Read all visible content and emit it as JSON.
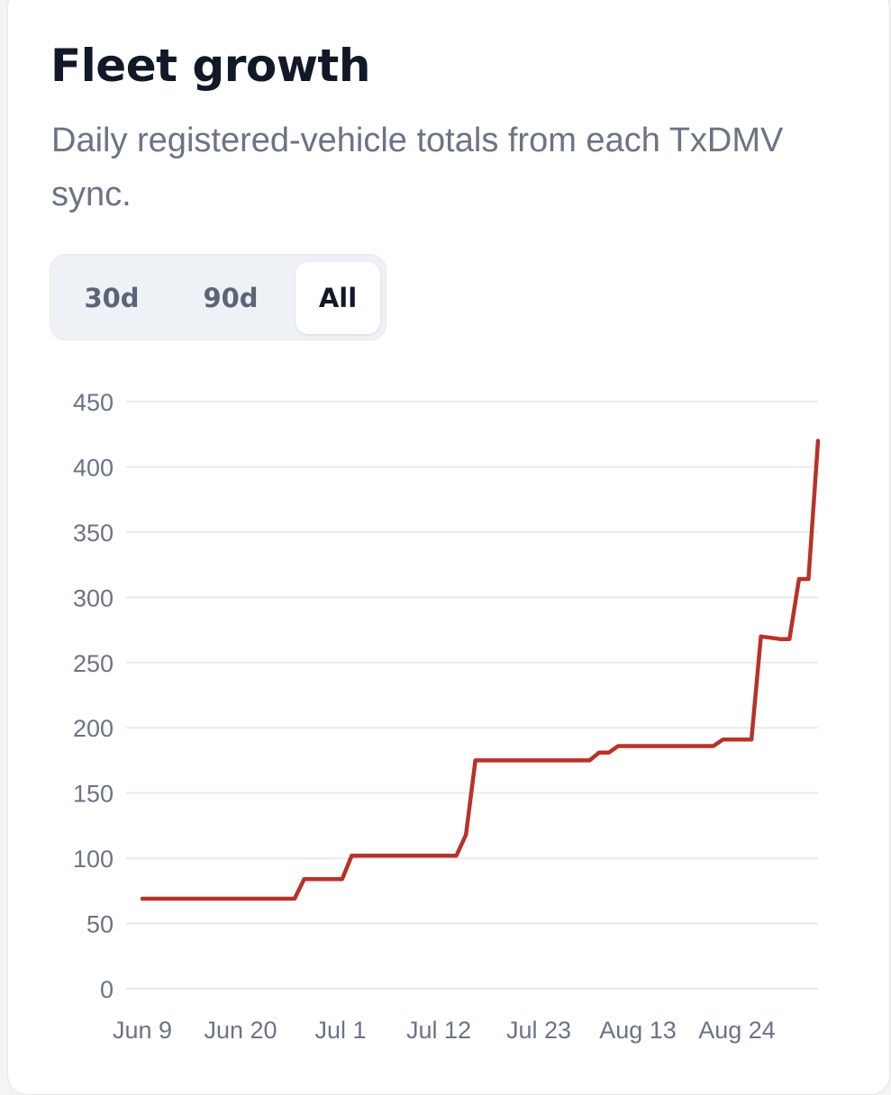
{
  "header": {
    "title": "Fleet growth",
    "subtitle": "Daily registered-vehicle totals from each TxDMV sync."
  },
  "range_selector": {
    "options": [
      "30d",
      "90d",
      "All"
    ],
    "selected": "All"
  },
  "colors": {
    "line": "#b83228",
    "grid": "#e8eaf0",
    "tick_text": "#6b7385",
    "title": "#111827"
  },
  "chart_data": {
    "type": "line",
    "title": "",
    "xlabel": "",
    "ylabel": "",
    "ylim": [
      0,
      450
    ],
    "yticks": [
      0,
      50,
      100,
      150,
      200,
      250,
      300,
      350,
      400,
      450
    ],
    "xtick_labels": [
      "Jun 9",
      "Jun 20",
      "Jul 1",
      "Jul 12",
      "Jul 23",
      "Aug 13",
      "Aug 24"
    ],
    "grid": true,
    "legend": "none",
    "series": [
      {
        "values": [
          69,
          69,
          69,
          69,
          69,
          69,
          69,
          69,
          69,
          69,
          69,
          69,
          69,
          69,
          69,
          69,
          69,
          84,
          84,
          84,
          84,
          84,
          102,
          102,
          102,
          102,
          102,
          102,
          102,
          102,
          102,
          102,
          102,
          102,
          118,
          175,
          175,
          175,
          175,
          175,
          175,
          175,
          175,
          175,
          175,
          175,
          175,
          175,
          181,
          181,
          186,
          186,
          186,
          186,
          186,
          186,
          186,
          186,
          186,
          186,
          186,
          191,
          191,
          191,
          191,
          270,
          269,
          268,
          268,
          314,
          314,
          420
        ]
      }
    ]
  }
}
